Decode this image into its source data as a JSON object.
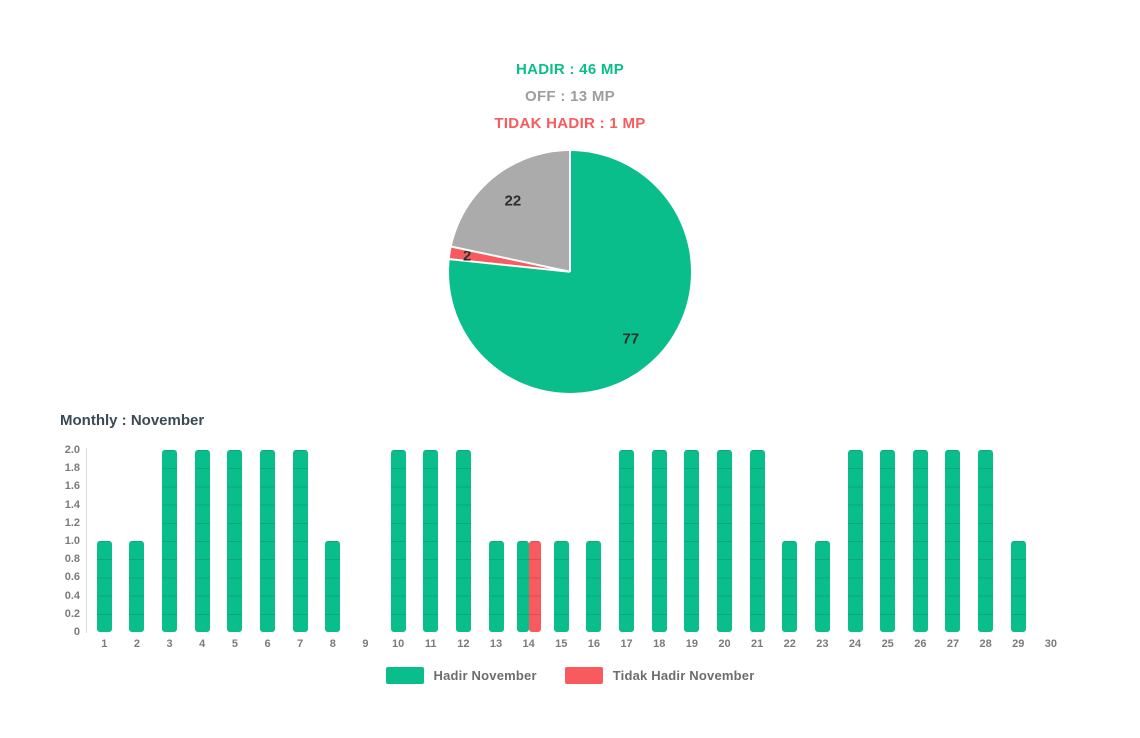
{
  "colors": {
    "green": "#0abe8c",
    "red": "#f85a5e",
    "gray": "#ababab",
    "gray_text": "#9e9e9e",
    "title_text": "#3b4a54",
    "axis_text": "#7b7b7b",
    "legend_text": "#6d6d6d"
  },
  "summary": {
    "hadir": "HADIR : 46 MP",
    "off": "OFF : 13 MP",
    "tidak_hadir": "TIDAK HADIR : 1 MP"
  },
  "chart_data": [
    {
      "type": "pie",
      "title": "",
      "labels": [
        "Hadir",
        "Tidak Hadir",
        "Off"
      ],
      "values": [
        46,
        1,
        13
      ],
      "displayed_slice_labels": [
        "77",
        "2",
        "22"
      ],
      "colors": [
        "#0abe8c",
        "#f85a5e",
        "#ababab"
      ],
      "start_angle_deg": 0,
      "direction": "clockwise",
      "annotations": [
        "HADIR : 46 MP",
        "OFF : 13 MP",
        "TIDAK HADIR : 1 MP"
      ]
    },
    {
      "type": "bar",
      "title": "Monthly : November",
      "categories": [
        "1",
        "2",
        "3",
        "4",
        "5",
        "6",
        "7",
        "8",
        "9",
        "10",
        "11",
        "12",
        "13",
        "14",
        "15",
        "16",
        "17",
        "18",
        "19",
        "20",
        "21",
        "22",
        "23",
        "24",
        "25",
        "26",
        "27",
        "28",
        "29",
        "30"
      ],
      "series": [
        {
          "name": "Hadir November",
          "color": "#0abe8c",
          "values": [
            1,
            1,
            2,
            2,
            2,
            2,
            2,
            1,
            0,
            2,
            2,
            2,
            1,
            1,
            1,
            1,
            2,
            2,
            2,
            2,
            2,
            1,
            1,
            2,
            2,
            2,
            2,
            2,
            1,
            0
          ]
        },
        {
          "name": "Tidak Hadir November",
          "color": "#f85a5e",
          "values": [
            0,
            0,
            0,
            0,
            0,
            0,
            0,
            0,
            0,
            0,
            0,
            0,
            0,
            1,
            0,
            0,
            0,
            0,
            0,
            0,
            0,
            0,
            0,
            0,
            0,
            0,
            0,
            0,
            0,
            0
          ]
        }
      ],
      "ylim": [
        0,
        2.0
      ],
      "yticks": [
        "2.0",
        "1.8",
        "1.6",
        "1.4",
        "1.2",
        "1.0",
        "0.8",
        "0.6",
        "0.4",
        "0.2",
        "0"
      ],
      "grid": false,
      "legend_position": "bottom"
    }
  ]
}
